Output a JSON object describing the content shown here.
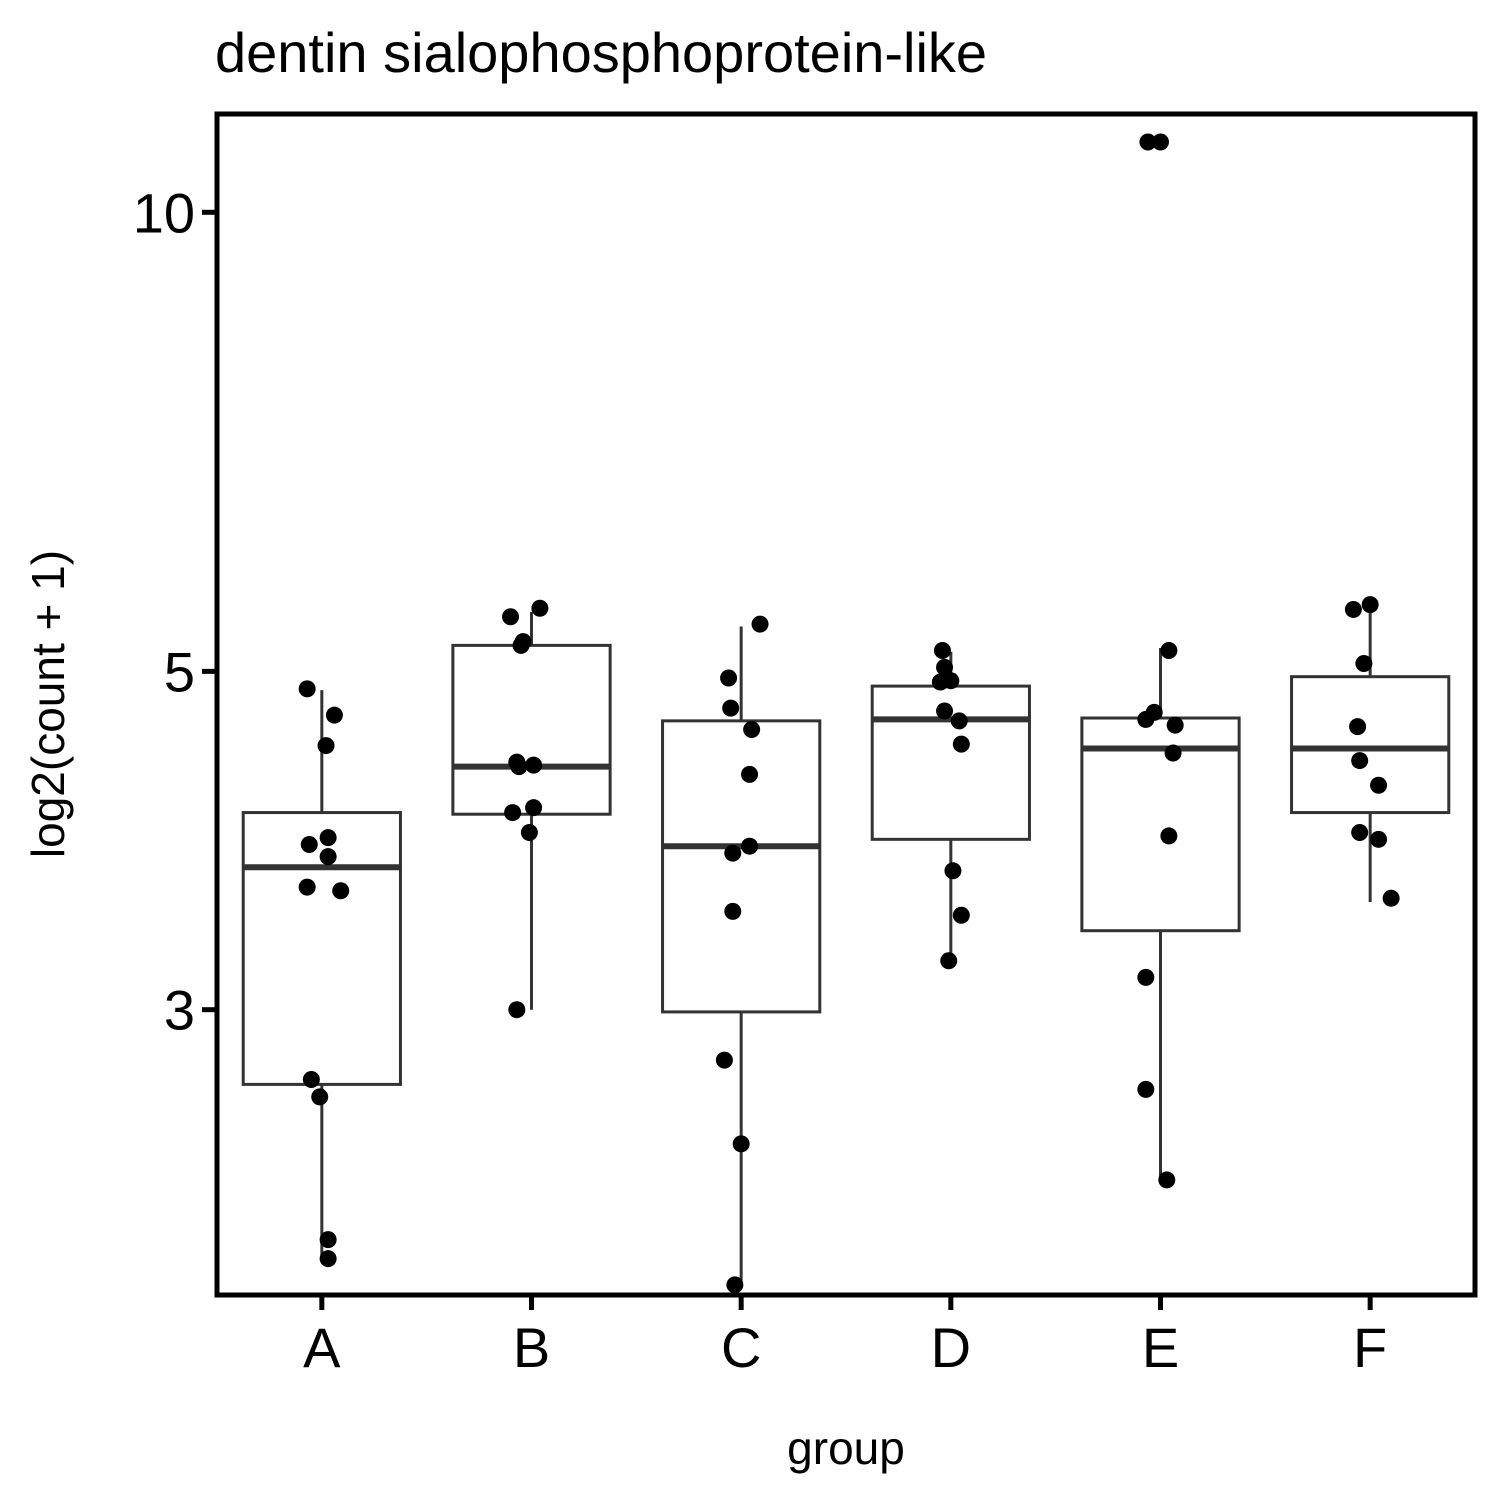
{
  "chart_data": {
    "type": "box",
    "title": "dentin sialophosphoprotein-like",
    "xlabel": "group",
    "ylabel": "log2(count + 1)",
    "y_scale": "log",
    "ylim": [
      1.95,
      11.6
    ],
    "y_ticks": [
      3,
      5,
      10
    ],
    "y_tick_labels": [
      "3",
      "5",
      "10"
    ],
    "categories": [
      "A",
      "B",
      "C",
      "D",
      "E",
      "F"
    ],
    "grid": false,
    "legend": "none",
    "colors": {
      "box_stroke": "#333333",
      "point": "#000000",
      "axis": "#000000"
    },
    "boxes": [
      {
        "group": "A",
        "whisker_low": 2.05,
        "q1": 2.68,
        "median": 3.72,
        "q3": 4.04,
        "whisker_high": 4.86
      },
      {
        "group": "B",
        "whisker_low": 3.0,
        "q1": 4.03,
        "median": 4.33,
        "q3": 5.2,
        "whisker_high": 5.47
      },
      {
        "group": "C",
        "whisker_low": 1.98,
        "q1": 2.99,
        "median": 3.84,
        "q3": 4.64,
        "whisker_high": 5.35
      },
      {
        "group": "D",
        "whisker_low": 3.23,
        "q1": 3.88,
        "median": 4.65,
        "q3": 4.89,
        "whisker_high": 5.15
      },
      {
        "group": "E",
        "whisker_low": 2.32,
        "q1": 3.38,
        "median": 4.45,
        "q3": 4.66,
        "whisker_high": 5.18
      },
      {
        "group": "F",
        "whisker_low": 3.53,
        "q1": 4.04,
        "median": 4.45,
        "q3": 4.96,
        "whisker_high": 5.53
      }
    ],
    "points": [
      {
        "group": "A",
        "values": [
          4.87,
          4.68,
          4.47,
          3.85,
          3.89,
          3.78,
          3.61,
          3.59,
          2.7,
          2.63,
          2.12,
          2.06
        ]
      },
      {
        "group": "B",
        "values": [
          5.43,
          5.5,
          5.23,
          5.2,
          4.36,
          4.33,
          4.34,
          4.04,
          4.07,
          3.92,
          3.0
        ]
      },
      {
        "group": "C",
        "values": [
          5.37,
          4.95,
          4.73,
          4.58,
          4.28,
          3.84,
          3.8,
          3.48,
          2.78,
          2.45,
          1.98
        ]
      },
      {
        "group": "D",
        "values": [
          5.16,
          5.03,
          4.93,
          4.92,
          4.71,
          4.64,
          4.48,
          3.7,
          3.46,
          3.23
        ]
      },
      {
        "group": "E",
        "values": [
          11.12,
          11.12,
          5.16,
          4.7,
          4.61,
          4.65,
          4.42,
          3.9,
          3.15,
          2.66,
          2.32
        ]
      },
      {
        "group": "F",
        "values": [
          5.49,
          5.53,
          5.06,
          4.6,
          4.37,
          4.21,
          3.92,
          3.88,
          3.55
        ]
      }
    ],
    "jitter_offsets": [
      [
        -0.07,
        0.06,
        0.02,
        -0.06,
        0.03,
        0.03,
        -0.07,
        0.09,
        -0.05,
        -0.01,
        0.03,
        0.03
      ],
      [
        -0.1,
        0.04,
        -0.04,
        -0.05,
        -0.07,
        -0.06,
        0.01,
        -0.09,
        0.01,
        -0.01,
        -0.07
      ],
      [
        0.09,
        -0.06,
        -0.05,
        0.05,
        0.04,
        0.04,
        -0.04,
        -0.04,
        -0.08,
        0.0,
        -0.03
      ],
      [
        -0.04,
        -0.03,
        0.0,
        -0.05,
        -0.03,
        0.04,
        0.05,
        0.01,
        0.05,
        -0.01
      ],
      [
        -0.06,
        0.0,
        0.04,
        -0.03,
        0.07,
        -0.07,
        0.06,
        0.04,
        -0.07,
        -0.07,
        0.03
      ],
      [
        -0.08,
        0.0,
        -0.03,
        -0.06,
        -0.05,
        0.04,
        -0.05,
        0.04,
        0.1
      ]
    ]
  }
}
